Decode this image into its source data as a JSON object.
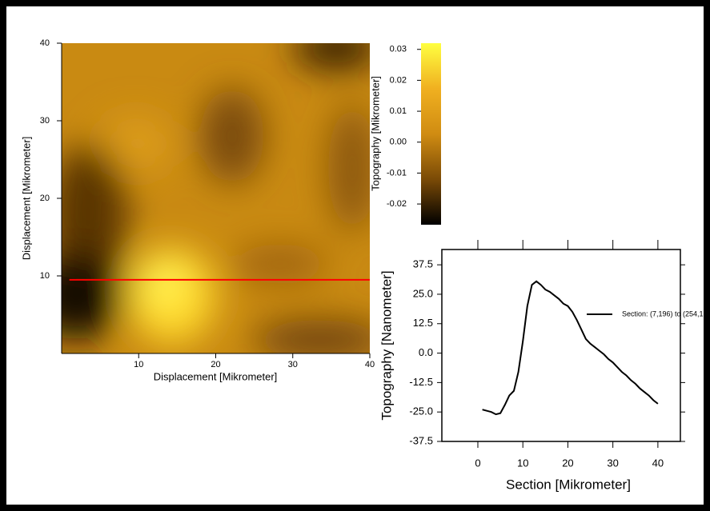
{
  "chart_data": [
    {
      "type": "heatmap",
      "xlabel": "Displacement [Mikrometer]",
      "ylabel": "Displacement [Mikrometer]",
      "xlim": [
        0,
        40
      ],
      "ylim": [
        0,
        40
      ],
      "xticks": [
        10,
        20,
        30,
        40
      ],
      "yticks": [
        10,
        20,
        30,
        40
      ],
      "section_line": {
        "y": 9.5,
        "x": [
          1,
          40
        ],
        "color": "#ff0000"
      },
      "colorbar": {
        "label": "Topography [Mikrometer]",
        "lim": [
          -0.0267,
          0.032
        ],
        "ticks": [
          0.03,
          0.02,
          0.01,
          {
            "value": 0,
            "label": "0.00"
          },
          -0.01,
          -0.02
        ],
        "colors": [
          "#000000",
          "#7a4a06",
          "#d08c12",
          "#f0b020",
          "#ffff40"
        ]
      }
    },
    {
      "type": "line",
      "xlabel": "Section [Mikrometer]",
      "ylabel": "Topography [Nanometer]",
      "xlim": [
        -8,
        45
      ],
      "ylim": [
        -37.5,
        44
      ],
      "xticks": [
        0,
        10,
        20,
        30,
        40
      ],
      "yticks": [
        37.5,
        {
          "value": 25,
          "label": "25.0"
        },
        12.5,
        {
          "value": 0,
          "label": "0.0"
        },
        -12.5,
        {
          "value": -25,
          "label": "-25.0"
        },
        -37.5
      ],
      "x": [
        1,
        2,
        3,
        4,
        5,
        6,
        7,
        8,
        9,
        10,
        11,
        12,
        13,
        14,
        15,
        16,
        17,
        18,
        19,
        20,
        21,
        22,
        23,
        24,
        25,
        26,
        27,
        28,
        29,
        30,
        31,
        32,
        33,
        34,
        35,
        36,
        37,
        38,
        39,
        40
      ],
      "series": [
        {
          "name": "Section: (7,196) to (254,1",
          "color": "#000000",
          "values": [
            -24,
            -24.5,
            -25,
            -26,
            -25.5,
            -22,
            -18,
            -16,
            -8,
            5,
            20,
            29,
            30.5,
            29,
            27,
            26,
            24.5,
            23,
            21,
            20,
            17.5,
            14,
            10,
            6,
            4,
            2.5,
            1,
            -0.5,
            -2.5,
            -4,
            -6,
            -8,
            -9.5,
            -11.5,
            -13,
            -15,
            -16.5,
            -18,
            -20,
            -21.5
          ]
        }
      ]
    }
  ]
}
